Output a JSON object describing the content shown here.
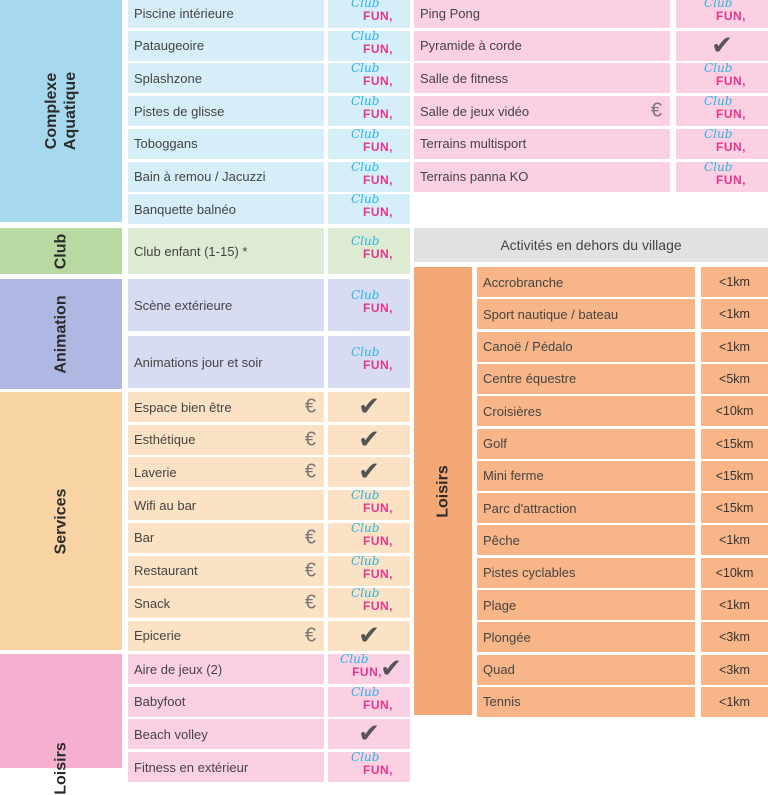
{
  "icons": {
    "club_fun_top": "Club",
    "club_fun_bottom": "FUN,",
    "check": "✔",
    "euro": "€"
  },
  "colors": {
    "aquatique": "#d5eef8",
    "aquatique_band": "#a7d9ee",
    "club": "#dcebd2",
    "club_band": "#b9d9a2",
    "animation": "#d7dcf3",
    "animation_band": "#aeb8e2",
    "services": "#fbe2c4",
    "services_band": "#f8d3a4",
    "loisirs": "#fbd0e3",
    "loisirs_band": "#f5b0d0",
    "outside_header": "#e1e1e1",
    "outside_rows": "#f8b688",
    "outside_band": "#f4a876"
  },
  "left": {
    "categories": [
      {
        "label": "Complexe Aquatique"
      },
      {
        "label": "Club"
      },
      {
        "label": "Animation"
      },
      {
        "label": "Services"
      },
      {
        "label": "Loisirs"
      }
    ],
    "aquatique": [
      {
        "label": "Piscine intérieure",
        "icon": "club-fun"
      },
      {
        "label": "Pataugeoire",
        "icon": "club-fun"
      },
      {
        "label": "Splashzone",
        "icon": "club-fun"
      },
      {
        "label": "Pistes de glisse",
        "icon": "club-fun"
      },
      {
        "label": "Toboggans",
        "icon": "club-fun"
      },
      {
        "label": "Bain à remou / Jacuzzi",
        "icon": "club-fun"
      },
      {
        "label": "Banquette balnéo",
        "icon": "club-fun"
      }
    ],
    "club": [
      {
        "label": "Club enfant (1-15) *",
        "icon": "club-fun"
      }
    ],
    "animation": [
      {
        "label": "Scène extérieure",
        "icon": "club-fun"
      },
      {
        "label": "Animations jour et soir",
        "icon": "club-fun"
      }
    ],
    "services": [
      {
        "label": "Espace bien être",
        "euro": true,
        "icon": "check"
      },
      {
        "label": "Esthétique",
        "euro": true,
        "icon": "check"
      },
      {
        "label": "Laverie",
        "euro": true,
        "icon": "check"
      },
      {
        "label": "Wifi au bar",
        "euro": false,
        "icon": "club-fun"
      },
      {
        "label": "Bar",
        "euro": true,
        "icon": "club-fun"
      },
      {
        "label": "Restaurant",
        "euro": true,
        "icon": "club-fun"
      },
      {
        "label": "Snack",
        "euro": true,
        "icon": "club-fun"
      },
      {
        "label": "Epicerie",
        "euro": true,
        "icon": "check"
      }
    ],
    "loisirs": [
      {
        "label": "Aire de jeux (2)",
        "icon": "club-fun+check"
      },
      {
        "label": "Babyfoot",
        "icon": "club-fun"
      },
      {
        "label": "Beach volley",
        "icon": "check"
      },
      {
        "label": "Fitness en extérieur",
        "icon": "club-fun"
      }
    ]
  },
  "right": {
    "top": [
      {
        "label": "Ping Pong",
        "euro": false,
        "icon": "club-fun"
      },
      {
        "label": "Pyramide à corde",
        "euro": false,
        "icon": "check"
      },
      {
        "label": "Salle de fitness",
        "euro": false,
        "icon": "club-fun"
      },
      {
        "label": "Salle de jeux vidéo",
        "euro": true,
        "icon": "club-fun"
      },
      {
        "label": "Terrains multisport",
        "euro": false,
        "icon": "club-fun"
      },
      {
        "label": "Terrains panna KO",
        "euro": false,
        "icon": "club-fun"
      }
    ],
    "outside": {
      "header": "Activités en dehors du village",
      "category": "Loisirs",
      "rows": [
        {
          "label": "Accrobranche",
          "distance": "<1km"
        },
        {
          "label": "Sport nautique / bateau",
          "distance": "<1km"
        },
        {
          "label": "Canoë / Pédalo",
          "distance": "<1km"
        },
        {
          "label": "Centre équestre",
          "distance": "<5km"
        },
        {
          "label": "Croisières",
          "distance": "<10km"
        },
        {
          "label": "Golf",
          "distance": "<15km"
        },
        {
          "label": "Mini ferme",
          "distance": "<15km"
        },
        {
          "label": "Parc d'attraction",
          "distance": "<15km"
        },
        {
          "label": "Pêche",
          "distance": "<1km"
        },
        {
          "label": "Pistes cyclables",
          "distance": "<10km"
        },
        {
          "label": "Plage",
          "distance": "<1km"
        },
        {
          "label": "Plongée",
          "distance": "<3km"
        },
        {
          "label": "Quad",
          "distance": "<3km"
        },
        {
          "label": "Tennis",
          "distance": "<1km"
        }
      ]
    }
  }
}
